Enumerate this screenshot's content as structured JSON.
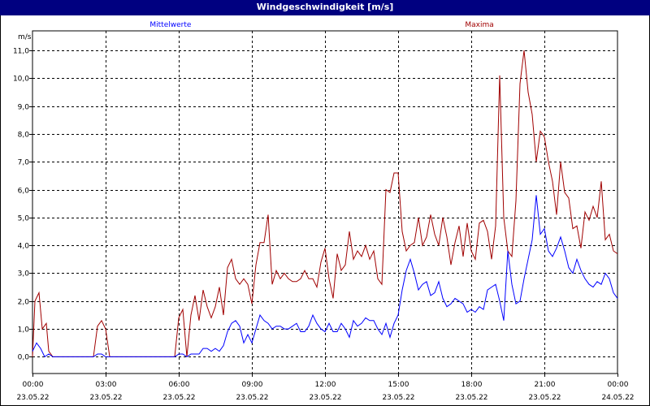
{
  "chart_data": {
    "type": "line",
    "title": "Windgeschwindigkeit [m/s]",
    "ylabel": "m/s",
    "xlabel": "",
    "ylim": [
      -0.6,
      11.7
    ],
    "xlim": [
      0,
      1440
    ],
    "grid": true,
    "y_ticks": [
      "0,0",
      "1,0",
      "2,0",
      "3,0",
      "4,0",
      "5,0",
      "6,0",
      "7,0",
      "8,0",
      "9,0",
      "10,0",
      "11,0"
    ],
    "x_ticks": [
      {
        "time": "00:00",
        "date": "23.05.22"
      },
      {
        "time": "03:00",
        "date": "23.05.22"
      },
      {
        "time": "06:00",
        "date": "23.05.22"
      },
      {
        "time": "09:00",
        "date": "23.05.22"
      },
      {
        "time": "12:00",
        "date": "23.05.22"
      },
      {
        "time": "15:00",
        "date": "23.05.22"
      },
      {
        "time": "18:00",
        "date": "23.05.22"
      },
      {
        "time": "21:00",
        "date": "23.05.22"
      },
      {
        "time": "00:00",
        "date": "24.05.22"
      }
    ],
    "series": [
      {
        "name": "Mittelwerte",
        "color": "#0000ff",
        "points": [
          [
            0,
            0.2
          ],
          [
            10,
            0.5
          ],
          [
            20,
            0.3
          ],
          [
            30,
            0.0
          ],
          [
            40,
            0.1
          ],
          [
            50,
            0.0
          ],
          [
            60,
            0.0
          ],
          [
            70,
            0.0
          ],
          [
            80,
            0.0
          ],
          [
            90,
            0.0
          ],
          [
            100,
            0.0
          ],
          [
            110,
            0.0
          ],
          [
            120,
            0.0
          ],
          [
            130,
            0.0
          ],
          [
            140,
            0.0
          ],
          [
            150,
            0.0
          ],
          [
            160,
            0.1
          ],
          [
            170,
            0.1
          ],
          [
            180,
            0.0
          ],
          [
            190,
            0.0
          ],
          [
            200,
            0.0
          ],
          [
            210,
            0.0
          ],
          [
            220,
            0.0
          ],
          [
            230,
            0.0
          ],
          [
            240,
            0.0
          ],
          [
            250,
            0.0
          ],
          [
            260,
            0.0
          ],
          [
            270,
            0.0
          ],
          [
            280,
            0.0
          ],
          [
            290,
            0.0
          ],
          [
            300,
            0.0
          ],
          [
            310,
            0.0
          ],
          [
            320,
            0.0
          ],
          [
            330,
            0.0
          ],
          [
            340,
            0.0
          ],
          [
            350,
            0.0
          ],
          [
            360,
            0.1
          ],
          [
            370,
            0.1
          ],
          [
            380,
            0.0
          ],
          [
            390,
            0.1
          ],
          [
            400,
            0.1
          ],
          [
            410,
            0.1
          ],
          [
            420,
            0.3
          ],
          [
            430,
            0.3
          ],
          [
            440,
            0.2
          ],
          [
            450,
            0.3
          ],
          [
            460,
            0.2
          ],
          [
            470,
            0.4
          ],
          [
            480,
            0.9
          ],
          [
            490,
            1.2
          ],
          [
            500,
            1.3
          ],
          [
            510,
            1.1
          ],
          [
            520,
            0.5
          ],
          [
            530,
            0.8
          ],
          [
            540,
            0.5
          ],
          [
            550,
            1.0
          ],
          [
            560,
            1.5
          ],
          [
            570,
            1.3
          ],
          [
            580,
            1.2
          ],
          [
            590,
            1.0
          ],
          [
            600,
            1.1
          ],
          [
            610,
            1.1
          ],
          [
            620,
            1.0
          ],
          [
            630,
            1.0
          ],
          [
            640,
            1.1
          ],
          [
            650,
            1.2
          ],
          [
            660,
            0.9
          ],
          [
            670,
            0.9
          ],
          [
            680,
            1.1
          ],
          [
            690,
            1.5
          ],
          [
            700,
            1.2
          ],
          [
            710,
            1.0
          ],
          [
            720,
            0.9
          ],
          [
            730,
            1.2
          ],
          [
            740,
            0.9
          ],
          [
            750,
            0.9
          ],
          [
            760,
            1.2
          ],
          [
            770,
            1.0
          ],
          [
            780,
            0.7
          ],
          [
            790,
            1.3
          ],
          [
            800,
            1.1
          ],
          [
            810,
            1.2
          ],
          [
            820,
            1.4
          ],
          [
            830,
            1.3
          ],
          [
            840,
            1.3
          ],
          [
            850,
            1.0
          ],
          [
            860,
            0.8
          ],
          [
            870,
            1.2
          ],
          [
            880,
            0.7
          ],
          [
            890,
            1.2
          ],
          [
            900,
            1.5
          ],
          [
            910,
            2.4
          ],
          [
            920,
            3.1
          ],
          [
            930,
            3.5
          ],
          [
            940,
            3.0
          ],
          [
            950,
            2.4
          ],
          [
            960,
            2.6
          ],
          [
            970,
            2.7
          ],
          [
            980,
            2.2
          ],
          [
            990,
            2.3
          ],
          [
            1000,
            2.7
          ],
          [
            1010,
            2.1
          ],
          [
            1020,
            1.8
          ],
          [
            1030,
            1.9
          ],
          [
            1040,
            2.1
          ],
          [
            1050,
            2.0
          ],
          [
            1060,
            1.9
          ],
          [
            1070,
            1.6
          ],
          [
            1080,
            1.7
          ],
          [
            1090,
            1.6
          ],
          [
            1100,
            1.8
          ],
          [
            1110,
            1.7
          ],
          [
            1120,
            2.4
          ],
          [
            1130,
            2.5
          ],
          [
            1140,
            2.6
          ],
          [
            1150,
            2.0
          ],
          [
            1160,
            1.3
          ],
          [
            1170,
            3.8
          ],
          [
            1180,
            2.6
          ],
          [
            1190,
            1.9
          ],
          [
            1200,
            2.0
          ],
          [
            1210,
            2.8
          ],
          [
            1220,
            3.5
          ],
          [
            1230,
            4.2
          ],
          [
            1240,
            5.8
          ],
          [
            1250,
            4.4
          ],
          [
            1260,
            4.6
          ],
          [
            1270,
            3.8
          ],
          [
            1280,
            3.6
          ],
          [
            1290,
            3.9
          ],
          [
            1300,
            4.3
          ],
          [
            1310,
            3.8
          ],
          [
            1320,
            3.2
          ],
          [
            1330,
            3.0
          ],
          [
            1340,
            3.5
          ],
          [
            1350,
            3.1
          ],
          [
            1360,
            2.8
          ],
          [
            1370,
            2.6
          ],
          [
            1380,
            2.5
          ],
          [
            1390,
            2.7
          ],
          [
            1400,
            2.6
          ],
          [
            1410,
            3.0
          ],
          [
            1420,
            2.8
          ],
          [
            1430,
            2.3
          ],
          [
            1440,
            2.1
          ]
        ]
      },
      {
        "name": "Maxima",
        "color": "#a00000",
        "points": [
          [
            0,
            0.0
          ],
          [
            6,
            2.0
          ],
          [
            16,
            2.3
          ],
          [
            24,
            1.0
          ],
          [
            34,
            1.2
          ],
          [
            40,
            0.2
          ],
          [
            50,
            0.0
          ],
          [
            60,
            0.0
          ],
          [
            70,
            0.0
          ],
          [
            80,
            0.0
          ],
          [
            90,
            0.0
          ],
          [
            100,
            0.0
          ],
          [
            110,
            0.0
          ],
          [
            120,
            0.0
          ],
          [
            130,
            0.0
          ],
          [
            140,
            0.0
          ],
          [
            150,
            0.0
          ],
          [
            160,
            1.1
          ],
          [
            170,
            1.3
          ],
          [
            180,
            1.0
          ],
          [
            190,
            0.0
          ],
          [
            200,
            0.0
          ],
          [
            210,
            0.0
          ],
          [
            220,
            0.0
          ],
          [
            230,
            0.0
          ],
          [
            240,
            0.0
          ],
          [
            250,
            0.0
          ],
          [
            260,
            0.0
          ],
          [
            270,
            0.0
          ],
          [
            280,
            0.0
          ],
          [
            290,
            0.0
          ],
          [
            300,
            0.0
          ],
          [
            310,
            0.0
          ],
          [
            320,
            0.0
          ],
          [
            330,
            0.0
          ],
          [
            340,
            0.0
          ],
          [
            350,
            0.0
          ],
          [
            360,
            1.4
          ],
          [
            370,
            1.7
          ],
          [
            380,
            0.0
          ],
          [
            390,
            1.5
          ],
          [
            400,
            2.2
          ],
          [
            410,
            1.3
          ],
          [
            420,
            2.4
          ],
          [
            430,
            1.8
          ],
          [
            440,
            1.4
          ],
          [
            450,
            1.8
          ],
          [
            460,
            2.5
          ],
          [
            470,
            1.5
          ],
          [
            480,
            3.2
          ],
          [
            490,
            3.5
          ],
          [
            500,
            2.8
          ],
          [
            510,
            2.6
          ],
          [
            520,
            2.8
          ],
          [
            530,
            2.6
          ],
          [
            540,
            1.9
          ],
          [
            550,
            3.3
          ],
          [
            560,
            4.1
          ],
          [
            570,
            4.1
          ],
          [
            580,
            5.1
          ],
          [
            590,
            2.6
          ],
          [
            600,
            3.1
          ],
          [
            610,
            2.8
          ],
          [
            620,
            3.0
          ],
          [
            630,
            2.8
          ],
          [
            640,
            2.7
          ],
          [
            650,
            2.7
          ],
          [
            660,
            2.8
          ],
          [
            670,
            3.1
          ],
          [
            680,
            2.8
          ],
          [
            690,
            2.8
          ],
          [
            700,
            2.5
          ],
          [
            710,
            3.4
          ],
          [
            720,
            3.9
          ],
          [
            730,
            2.8
          ],
          [
            740,
            2.1
          ],
          [
            750,
            3.7
          ],
          [
            760,
            3.1
          ],
          [
            770,
            3.3
          ],
          [
            780,
            4.5
          ],
          [
            790,
            3.5
          ],
          [
            800,
            3.8
          ],
          [
            810,
            3.6
          ],
          [
            820,
            4.0
          ],
          [
            830,
            3.5
          ],
          [
            840,
            3.8
          ],
          [
            850,
            2.8
          ],
          [
            860,
            2.6
          ],
          [
            870,
            6.0
          ],
          [
            880,
            5.9
          ],
          [
            890,
            6.6
          ],
          [
            900,
            6.6
          ],
          [
            910,
            4.5
          ],
          [
            920,
            3.8
          ],
          [
            930,
            4.0
          ],
          [
            940,
            4.1
          ],
          [
            950,
            5.0
          ],
          [
            960,
            4.0
          ],
          [
            970,
            4.3
          ],
          [
            980,
            5.1
          ],
          [
            990,
            4.4
          ],
          [
            1000,
            4.0
          ],
          [
            1010,
            5.0
          ],
          [
            1020,
            4.3
          ],
          [
            1030,
            3.3
          ],
          [
            1040,
            4.1
          ],
          [
            1050,
            4.7
          ],
          [
            1060,
            3.6
          ],
          [
            1070,
            4.8
          ],
          [
            1080,
            3.8
          ],
          [
            1090,
            3.5
          ],
          [
            1100,
            4.8
          ],
          [
            1110,
            4.9
          ],
          [
            1120,
            4.5
          ],
          [
            1130,
            3.5
          ],
          [
            1140,
            4.7
          ],
          [
            1150,
            10.1
          ],
          [
            1160,
            5.0
          ],
          [
            1170,
            3.8
          ],
          [
            1180,
            3.6
          ],
          [
            1190,
            5.6
          ],
          [
            1200,
            9.8
          ],
          [
            1210,
            11.0
          ],
          [
            1220,
            9.5
          ],
          [
            1230,
            8.7
          ],
          [
            1240,
            7.0
          ],
          [
            1250,
            8.1
          ],
          [
            1260,
            7.9
          ],
          [
            1270,
            7.0
          ],
          [
            1280,
            6.3
          ],
          [
            1290,
            5.1
          ],
          [
            1300,
            7.0
          ],
          [
            1310,
            5.9
          ],
          [
            1320,
            5.7
          ],
          [
            1330,
            4.6
          ],
          [
            1340,
            4.7
          ],
          [
            1350,
            3.9
          ],
          [
            1360,
            5.2
          ],
          [
            1370,
            4.9
          ],
          [
            1380,
            5.4
          ],
          [
            1390,
            5.0
          ],
          [
            1400,
            6.3
          ],
          [
            1410,
            4.2
          ],
          [
            1420,
            4.4
          ],
          [
            1430,
            3.8
          ],
          [
            1440,
            3.7
          ]
        ]
      }
    ]
  }
}
